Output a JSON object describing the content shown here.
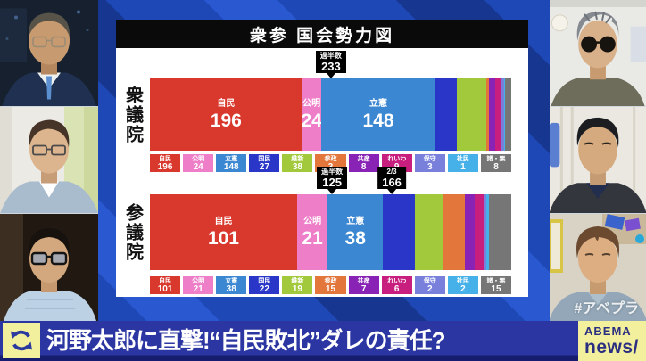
{
  "panel": {
    "title": "衆参 国会勢力図"
  },
  "chart_data": [
    {
      "type": "bar",
      "house": "衆議院",
      "total": 465,
      "markers": [
        {
          "label": "過半数",
          "value": 233
        }
      ],
      "parties": [
        {
          "name": "自民",
          "seats": 196,
          "color": "#d9382d",
          "in_bar": true
        },
        {
          "name": "公明",
          "seats": 24,
          "color": "#ee7ec8",
          "in_bar": true
        },
        {
          "name": "立憲",
          "seats": 148,
          "color": "#3c87d2",
          "in_bar": true
        },
        {
          "name": "国民",
          "seats": 27,
          "color": "#2a36c8",
          "in_bar": false
        },
        {
          "name": "維新",
          "seats": 38,
          "color": "#a2c93b",
          "in_bar": false
        },
        {
          "name": "参政",
          "seats": 3,
          "color": "#e2763b",
          "in_bar": false
        },
        {
          "name": "共産",
          "seats": 8,
          "color": "#8823b5",
          "in_bar": false
        },
        {
          "name": "れいわ",
          "seats": 9,
          "color": "#c81f7e",
          "in_bar": false
        },
        {
          "name": "保守",
          "seats": 3,
          "color": "#7880dc",
          "in_bar": false
        },
        {
          "name": "社民",
          "seats": 1,
          "color": "#45b1e8",
          "in_bar": false
        },
        {
          "name": "諸・無",
          "seats": 8,
          "color": "#767676",
          "in_bar": false
        }
      ]
    },
    {
      "type": "bar",
      "house": "参議院",
      "total": 248,
      "markers": [
        {
          "label": "過半数",
          "value": 125
        },
        {
          "label": "2/3",
          "value": 166
        }
      ],
      "parties": [
        {
          "name": "自民",
          "seats": 101,
          "color": "#d9382d",
          "in_bar": true
        },
        {
          "name": "公明",
          "seats": 21,
          "color": "#ee7ec8",
          "in_bar": true
        },
        {
          "name": "立憲",
          "seats": 38,
          "color": "#3c87d2",
          "in_bar": true
        },
        {
          "name": "国民",
          "seats": 22,
          "color": "#2a36c8",
          "in_bar": false
        },
        {
          "name": "維新",
          "seats": 19,
          "color": "#a2c93b",
          "in_bar": false
        },
        {
          "name": "参政",
          "seats": 15,
          "color": "#e2763b",
          "in_bar": false
        },
        {
          "name": "共産",
          "seats": 7,
          "color": "#8823b5",
          "in_bar": false
        },
        {
          "name": "れいわ",
          "seats": 6,
          "color": "#c81f7e",
          "in_bar": false
        },
        {
          "name": "保守",
          "seats": 2,
          "color": "#7880dc",
          "in_bar": false
        },
        {
          "name": "社民",
          "seats": 2,
          "color": "#45b1e8",
          "in_bar": false
        },
        {
          "name": "諸・無",
          "seats": 15,
          "color": "#767676",
          "in_bar": false
        }
      ]
    }
  ],
  "ticker": {
    "headline": "河野太郎に直撃!“自民敗北”ダレの責任?",
    "logo_line1": "ABEMA",
    "logo_line2": "news/"
  },
  "watermark": "#アベプラ"
}
